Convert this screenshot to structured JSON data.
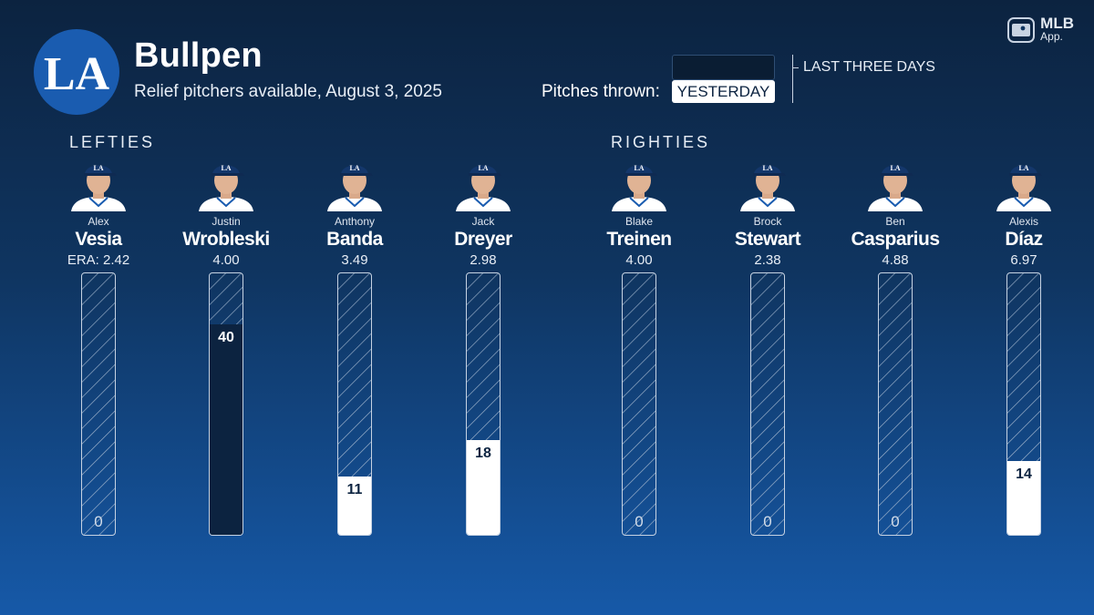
{
  "header": {
    "title": "Bullpen",
    "subtitle": "Relief pitchers available, August 3, 2025",
    "app_badge": "MLB",
    "app_badge_sub": "App."
  },
  "legend": {
    "label": "Pitches thrown:",
    "three_days": "LAST THREE DAYS",
    "yesterday": "YESTERDAY"
  },
  "colors": {
    "background_top": "#0c2340",
    "background_bottom": "#1659a8",
    "yesterday_fill": "#ffffff",
    "three_day_fill": "#0c2340"
  },
  "chart_data": {
    "type": "bar",
    "ylim": [
      0,
      50
    ],
    "groups": [
      {
        "label": "LEFTIES",
        "players": [
          {
            "first": "Alex",
            "last": "Vesia",
            "era": "ERA: 2.42",
            "value": 0,
            "window": "none"
          },
          {
            "first": "Justin",
            "last": "Wrobleski",
            "era": "4.00",
            "value": 40,
            "window": "last_three_days"
          },
          {
            "first": "Anthony",
            "last": "Banda",
            "era": "3.49",
            "value": 11,
            "window": "yesterday"
          },
          {
            "first": "Jack",
            "last": "Dreyer",
            "era": "2.98",
            "value": 18,
            "window": "yesterday"
          }
        ]
      },
      {
        "label": "RIGHTIES",
        "players": [
          {
            "first": "Blake",
            "last": "Treinen",
            "era": "4.00",
            "value": 0,
            "window": "none"
          },
          {
            "first": "Brock",
            "last": "Stewart",
            "era": "2.38",
            "value": 0,
            "window": "none"
          },
          {
            "first": "Ben",
            "last": "Casparius",
            "era": "4.88",
            "value": 0,
            "window": "none"
          },
          {
            "first": "Alexis",
            "last": "Díaz",
            "era": "6.97",
            "value": 14,
            "window": "yesterday"
          }
        ]
      }
    ]
  }
}
